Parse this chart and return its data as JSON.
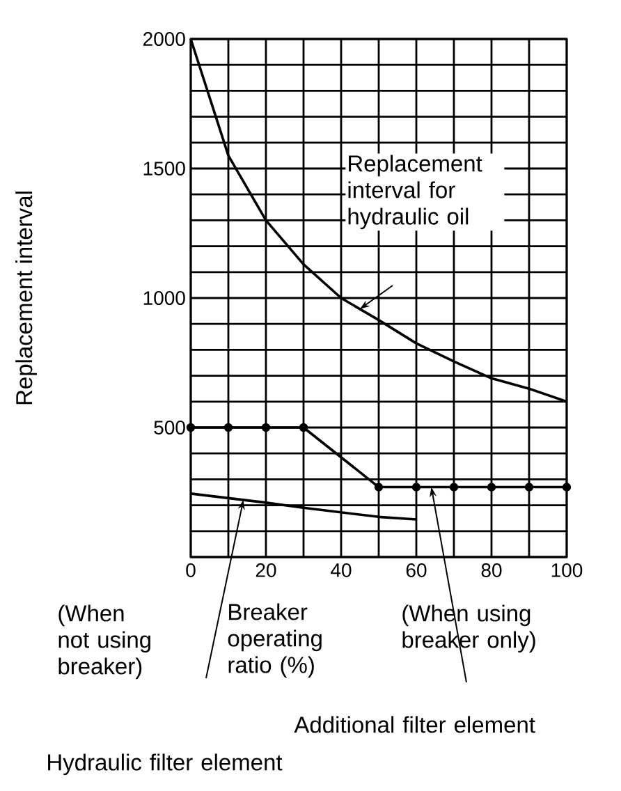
{
  "chart_data": {
    "type": "line",
    "xlabel": "Breaker operating ratio (%)",
    "ylabel": "Replacement interval",
    "xlim": [
      0,
      100
    ],
    "ylim": [
      0,
      2000
    ],
    "xticks": [
      0,
      {
        "value": 10,
        "label": null
      },
      20,
      {
        "value": 30,
        "label": null
      },
      40,
      {
        "value": 50,
        "label": null
      },
      60,
      {
        "value": 70,
        "label": null
      },
      80,
      {
        "value": 90,
        "label": null
      },
      100
    ],
    "yticks": [
      {
        "value": 0,
        "label": null
      },
      {
        "value": 100,
        "label": null
      },
      {
        "value": 200,
        "label": null
      },
      {
        "value": 300,
        "label": null
      },
      {
        "value": 400,
        "label": null
      },
      500,
      {
        "value": 600,
        "label": null
      },
      {
        "value": 700,
        "label": null
      },
      {
        "value": 800,
        "label": null
      },
      {
        "value": 900,
        "label": null
      },
      1000,
      {
        "value": 1100,
        "label": null
      },
      {
        "value": 1200,
        "label": null
      },
      {
        "value": 1300,
        "label": null
      },
      {
        "value": 1400,
        "label": null
      },
      1500,
      {
        "value": 1600,
        "label": null
      },
      {
        "value": 1700,
        "label": null
      },
      {
        "value": 1800,
        "label": null
      },
      {
        "value": 1900,
        "label": null
      },
      2000
    ],
    "grid": true,
    "series": [
      {
        "color": "#000000",
        "marker": "none",
        "x": [
          0,
          10,
          20,
          30,
          40,
          50,
          60,
          70,
          80,
          90,
          100
        ],
        "values": [
          2000,
          1550,
          1300,
          1130,
          1000,
          915,
          825,
          755,
          690,
          650,
          600
        ]
      },
      {
        "color": "#000000",
        "marker": "circle",
        "x": [
          0,
          10,
          20,
          30,
          50,
          60,
          70,
          80,
          90,
          100
        ],
        "values": [
          500,
          500,
          500,
          500,
          270,
          270,
          270,
          270,
          270,
          270
        ]
      },
      {
        "color": "#000000",
        "marker": "none",
        "x": [
          0,
          20,
          30,
          50,
          60
        ],
        "values": [
          245,
          210,
          190,
          155,
          145
        ]
      }
    ],
    "annotations": [
      "Replacement interval for hydraulic oil",
      "(When not using breaker)",
      "(When using breaker only)",
      "Additional filter element",
      "Hydraulic filter element"
    ]
  }
}
